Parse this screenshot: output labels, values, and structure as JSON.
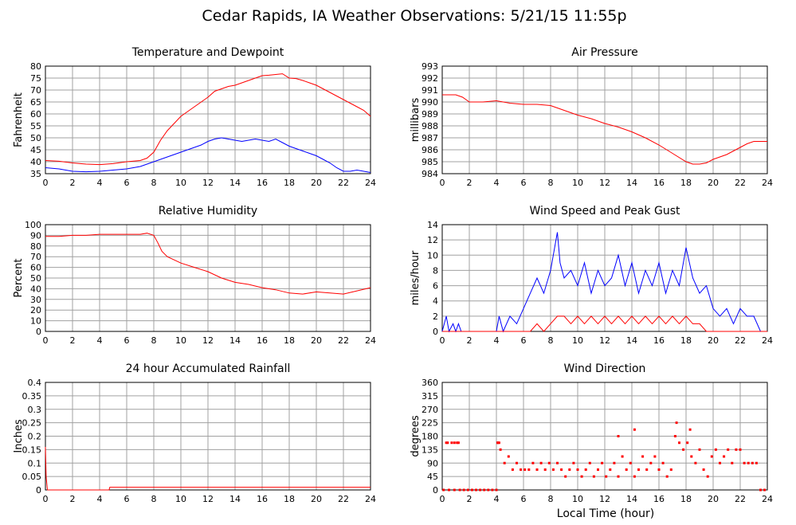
{
  "title": "Cedar Rapids, IA Weather Observations: 5/21/15 11:55p",
  "xlabel": "Local Time (hour)",
  "colors": {
    "red": "#ff0000",
    "blue": "#0000ff",
    "grid": "#a0a0a0"
  },
  "chart_data": [
    {
      "id": "temp",
      "type": "line",
      "title": "Temperature and Dewpoint",
      "ylabel": "Fahrenheit",
      "xlim": [
        0,
        24
      ],
      "ylim": [
        35,
        80
      ],
      "xticks": [
        0,
        2,
        4,
        6,
        8,
        10,
        12,
        14,
        16,
        18,
        20,
        22,
        24
      ],
      "yticks": [
        35,
        40,
        45,
        50,
        55,
        60,
        65,
        70,
        75,
        80
      ],
      "grid": true,
      "series": [
        {
          "color": "#ff0000",
          "x": [
            0,
            1,
            2,
            3,
            4,
            5,
            6,
            7,
            7.5,
            8,
            8.5,
            9,
            9.5,
            10,
            10.5,
            11,
            11.5,
            12,
            12.5,
            13,
            13.5,
            14,
            14.5,
            15,
            15.5,
            16,
            16.5,
            17,
            17.5,
            18,
            18.5,
            19,
            19.5,
            20,
            20.5,
            21,
            21.5,
            22,
            22.5,
            23,
            23.5,
            24
          ],
          "y": [
            40.5,
            40.2,
            39.5,
            39,
            38.8,
            39.2,
            40,
            40.5,
            41.5,
            44,
            49,
            53,
            56,
            59,
            61,
            63,
            65,
            67,
            69.5,
            70.5,
            71.5,
            72,
            73,
            74,
            75,
            76,
            76.2,
            76.5,
            76.8,
            75,
            74.8,
            74,
            73,
            72,
            70.5,
            69,
            67.5,
            66,
            64.5,
            63,
            61.5,
            59
          ]
        },
        {
          "color": "#0000ff",
          "x": [
            0,
            1,
            2,
            3,
            4,
            5,
            6,
            7,
            8,
            9,
            10,
            11,
            11.5,
            12,
            12.5,
            13,
            13.5,
            14,
            14.5,
            15,
            15.5,
            16,
            16.5,
            17,
            17.5,
            18,
            18.5,
            19,
            19.5,
            20,
            20.5,
            21,
            21.5,
            22,
            22.5,
            23,
            23.5,
            24
          ],
          "y": [
            37.5,
            37,
            36,
            35.8,
            36,
            36.5,
            37,
            38,
            40,
            42,
            44,
            46,
            47,
            48.5,
            49.5,
            50,
            49.5,
            49,
            48.5,
            49,
            49.5,
            49,
            48.5,
            49.5,
            48,
            46.5,
            45.5,
            44.5,
            43.5,
            42.5,
            41,
            39.5,
            37.5,
            36,
            36,
            36.5,
            36,
            35.5
          ]
        }
      ]
    },
    {
      "id": "pressure",
      "type": "line",
      "title": "Air Pressure",
      "ylabel": "millibars",
      "xlim": [
        0,
        24
      ],
      "ylim": [
        984,
        993
      ],
      "xticks": [
        0,
        2,
        4,
        6,
        8,
        10,
        12,
        14,
        16,
        18,
        20,
        22,
        24
      ],
      "yticks": [
        984,
        985,
        986,
        987,
        988,
        989,
        990,
        991,
        992,
        993
      ],
      "grid": true,
      "series": [
        {
          "color": "#ff0000",
          "x": [
            0,
            1,
            1.5,
            2,
            3,
            4,
            4.5,
            5,
            6,
            7,
            8,
            8.5,
            9,
            10,
            11,
            12,
            13,
            14,
            15,
            16,
            17,
            18,
            18.5,
            19,
            19.5,
            20,
            21,
            22,
            22.5,
            23,
            23.5,
            24
          ],
          "y": [
            990.6,
            990.6,
            990.4,
            990.0,
            990.0,
            990.1,
            990.0,
            989.9,
            989.8,
            989.8,
            989.7,
            989.5,
            989.3,
            988.9,
            988.6,
            988.2,
            987.9,
            987.5,
            987.0,
            986.4,
            985.7,
            985.0,
            984.8,
            984.8,
            984.9,
            985.2,
            985.6,
            986.2,
            986.5,
            986.7,
            986.7,
            986.7
          ]
        }
      ]
    },
    {
      "id": "humidity",
      "type": "line",
      "title": "Relative Humidity",
      "ylabel": "Percent",
      "xlim": [
        0,
        24
      ],
      "ylim": [
        0,
        100
      ],
      "xticks": [
        0,
        2,
        4,
        6,
        8,
        10,
        12,
        14,
        16,
        18,
        20,
        22,
        24
      ],
      "yticks": [
        0,
        10,
        20,
        30,
        40,
        50,
        60,
        70,
        80,
        90,
        100
      ],
      "grid": true,
      "series": [
        {
          "color": "#ff0000",
          "x": [
            0,
            1,
            2,
            3,
            4,
            5,
            6,
            7,
            7.5,
            8,
            8.3,
            8.6,
            9,
            9.5,
            10,
            11,
            12,
            13,
            14,
            15,
            16,
            17,
            18,
            19,
            20,
            21,
            22,
            23,
            24
          ],
          "y": [
            89,
            89,
            90,
            90,
            91,
            91,
            91,
            91,
            92,
            90,
            83,
            75,
            70,
            67,
            64,
            60,
            56,
            50,
            46,
            44,
            41,
            39,
            36,
            35,
            37,
            36,
            35,
            38,
            41
          ]
        }
      ]
    },
    {
      "id": "wind",
      "type": "line",
      "title": "Wind Speed and Peak Gust",
      "ylabel": "miles/hour",
      "xlim": [
        0,
        24
      ],
      "ylim": [
        0,
        14
      ],
      "xticks": [
        0,
        2,
        4,
        6,
        8,
        10,
        12,
        14,
        16,
        18,
        20,
        22,
        24
      ],
      "yticks": [
        0,
        2,
        4,
        6,
        8,
        10,
        12,
        14
      ],
      "grid": true,
      "series": [
        {
          "color": "#0000ff",
          "x": [
            0,
            0.3,
            0.5,
            0.8,
            1.0,
            1.2,
            1.4,
            4.0,
            4.2,
            4.5,
            5,
            5.5,
            6,
            6.5,
            7,
            7.5,
            8,
            8.3,
            8.5,
            8.7,
            9,
            9.5,
            10,
            10.5,
            11,
            11.5,
            12,
            12.5,
            13,
            13.5,
            14,
            14.5,
            15,
            15.5,
            16,
            16.5,
            17,
            17.5,
            18,
            18.5,
            19,
            19.5,
            20,
            20.5,
            21,
            21.5,
            22,
            22.5,
            23,
            23.5,
            24
          ],
          "y": [
            0,
            2,
            0,
            1,
            0,
            1,
            0,
            0,
            2,
            0,
            2,
            1,
            3,
            5,
            7,
            5,
            8,
            11,
            13,
            9,
            7,
            8,
            6,
            9,
            5,
            8,
            6,
            7,
            10,
            6,
            9,
            5,
            8,
            6,
            9,
            5,
            8,
            6,
            11,
            7,
            5,
            6,
            3,
            2,
            3,
            1,
            3,
            2,
            2,
            0,
            0
          ]
        },
        {
          "color": "#ff0000",
          "x": [
            0,
            6.5,
            7,
            7.5,
            8,
            8.5,
            9,
            9.5,
            10,
            10.5,
            11,
            11.5,
            12,
            12.5,
            13,
            13.5,
            14,
            14.5,
            15,
            15.5,
            16,
            16.5,
            17,
            17.5,
            18,
            18.5,
            19,
            19.5,
            20,
            24
          ],
          "y": [
            0,
            0,
            1,
            0,
            1,
            2,
            2,
            1,
            2,
            1,
            2,
            1,
            2,
            1,
            2,
            1,
            2,
            1,
            2,
            1,
            2,
            1,
            2,
            1,
            2,
            1,
            1,
            0,
            0,
            0
          ]
        }
      ]
    },
    {
      "id": "rain",
      "type": "line",
      "title": "24 hour Accumulated Rainfall",
      "ylabel": "Inches",
      "xlim": [
        0,
        24
      ],
      "ylim": [
        0,
        0.4
      ],
      "xticks": [
        0,
        2,
        4,
        6,
        8,
        10,
        12,
        14,
        16,
        18,
        20,
        22,
        24
      ],
      "yticks": [
        0.0,
        0.05,
        0.1,
        0.15,
        0.2,
        0.25,
        0.3,
        0.35,
        0.4
      ],
      "grid": true,
      "series": [
        {
          "color": "#ff0000",
          "x": [
            0,
            0.05,
            0.15,
            4.7,
            4.75,
            24
          ],
          "y": [
            0.16,
            0.05,
            0,
            0,
            0.01,
            0.01
          ]
        }
      ]
    },
    {
      "id": "direction",
      "type": "scatter",
      "title": "Wind Direction",
      "ylabel": "degrees",
      "xlim": [
        0,
        24
      ],
      "ylim": [
        0,
        360
      ],
      "xticks": [
        0,
        2,
        4,
        6,
        8,
        10,
        12,
        14,
        16,
        18,
        20,
        22,
        24
      ],
      "yticks": [
        0,
        45,
        90,
        135,
        180,
        225,
        270,
        315,
        360
      ],
      "grid": true,
      "series": [
        {
          "color": "#ff0000",
          "x": [
            0.1,
            0.3,
            0.5,
            0.7,
            0.9,
            1.1,
            1.3,
            1.6,
            1.9,
            2.2,
            2.5,
            2.8,
            3.1,
            3.4,
            3.7,
            4.0,
            4.1,
            4.3,
            4.6,
            4.9,
            5.2,
            5.5,
            5.8,
            6.1,
            6.4,
            6.7,
            7.0,
            7.3,
            7.6,
            7.9,
            8.2,
            8.5,
            8.8,
            9.1,
            9.4,
            9.7,
            10.0,
            10.3,
            10.6,
            10.9,
            11.2,
            11.5,
            11.8,
            12.1,
            12.4,
            12.7,
            13.0,
            13.3,
            13.6,
            13.9,
            14.2,
            14.5,
            14.8,
            15.1,
            15.4,
            15.7,
            16.0,
            16.3,
            16.6,
            16.9,
            17.2,
            17.5,
            17.8,
            18.1,
            18.4,
            18.7,
            19.0,
            19.3,
            19.6,
            19.9,
            20.2,
            20.5,
            20.8,
            21.1,
            21.4,
            21.7,
            22.0,
            22.3,
            22.6,
            22.9,
            23.2,
            23.5,
            23.8,
            0.4,
            0.9,
            1.2,
            4.1,
            4.2,
            13.0,
            14.2,
            17.3,
            18.3
          ],
          "y": [
            0,
            158,
            0,
            158,
            0,
            158,
            0,
            0,
            0,
            0,
            0,
            0,
            0,
            0,
            0,
            0,
            158,
            135,
            90,
            112,
            68,
            90,
            68,
            68,
            68,
            90,
            68,
            90,
            68,
            90,
            68,
            90,
            68,
            45,
            68,
            90,
            68,
            45,
            68,
            90,
            45,
            68,
            90,
            45,
            68,
            90,
            45,
            112,
            68,
            90,
            45,
            68,
            112,
            68,
            90,
            112,
            68,
            90,
            45,
            68,
            180,
            158,
            135,
            158,
            112,
            90,
            135,
            68,
            45,
            112,
            135,
            90,
            112,
            135,
            90,
            135,
            135,
            90,
            90,
            90,
            90,
            0,
            0,
            158,
            158,
            158,
            158,
            158,
            180,
            202,
            225,
            202
          ]
        }
      ]
    }
  ]
}
